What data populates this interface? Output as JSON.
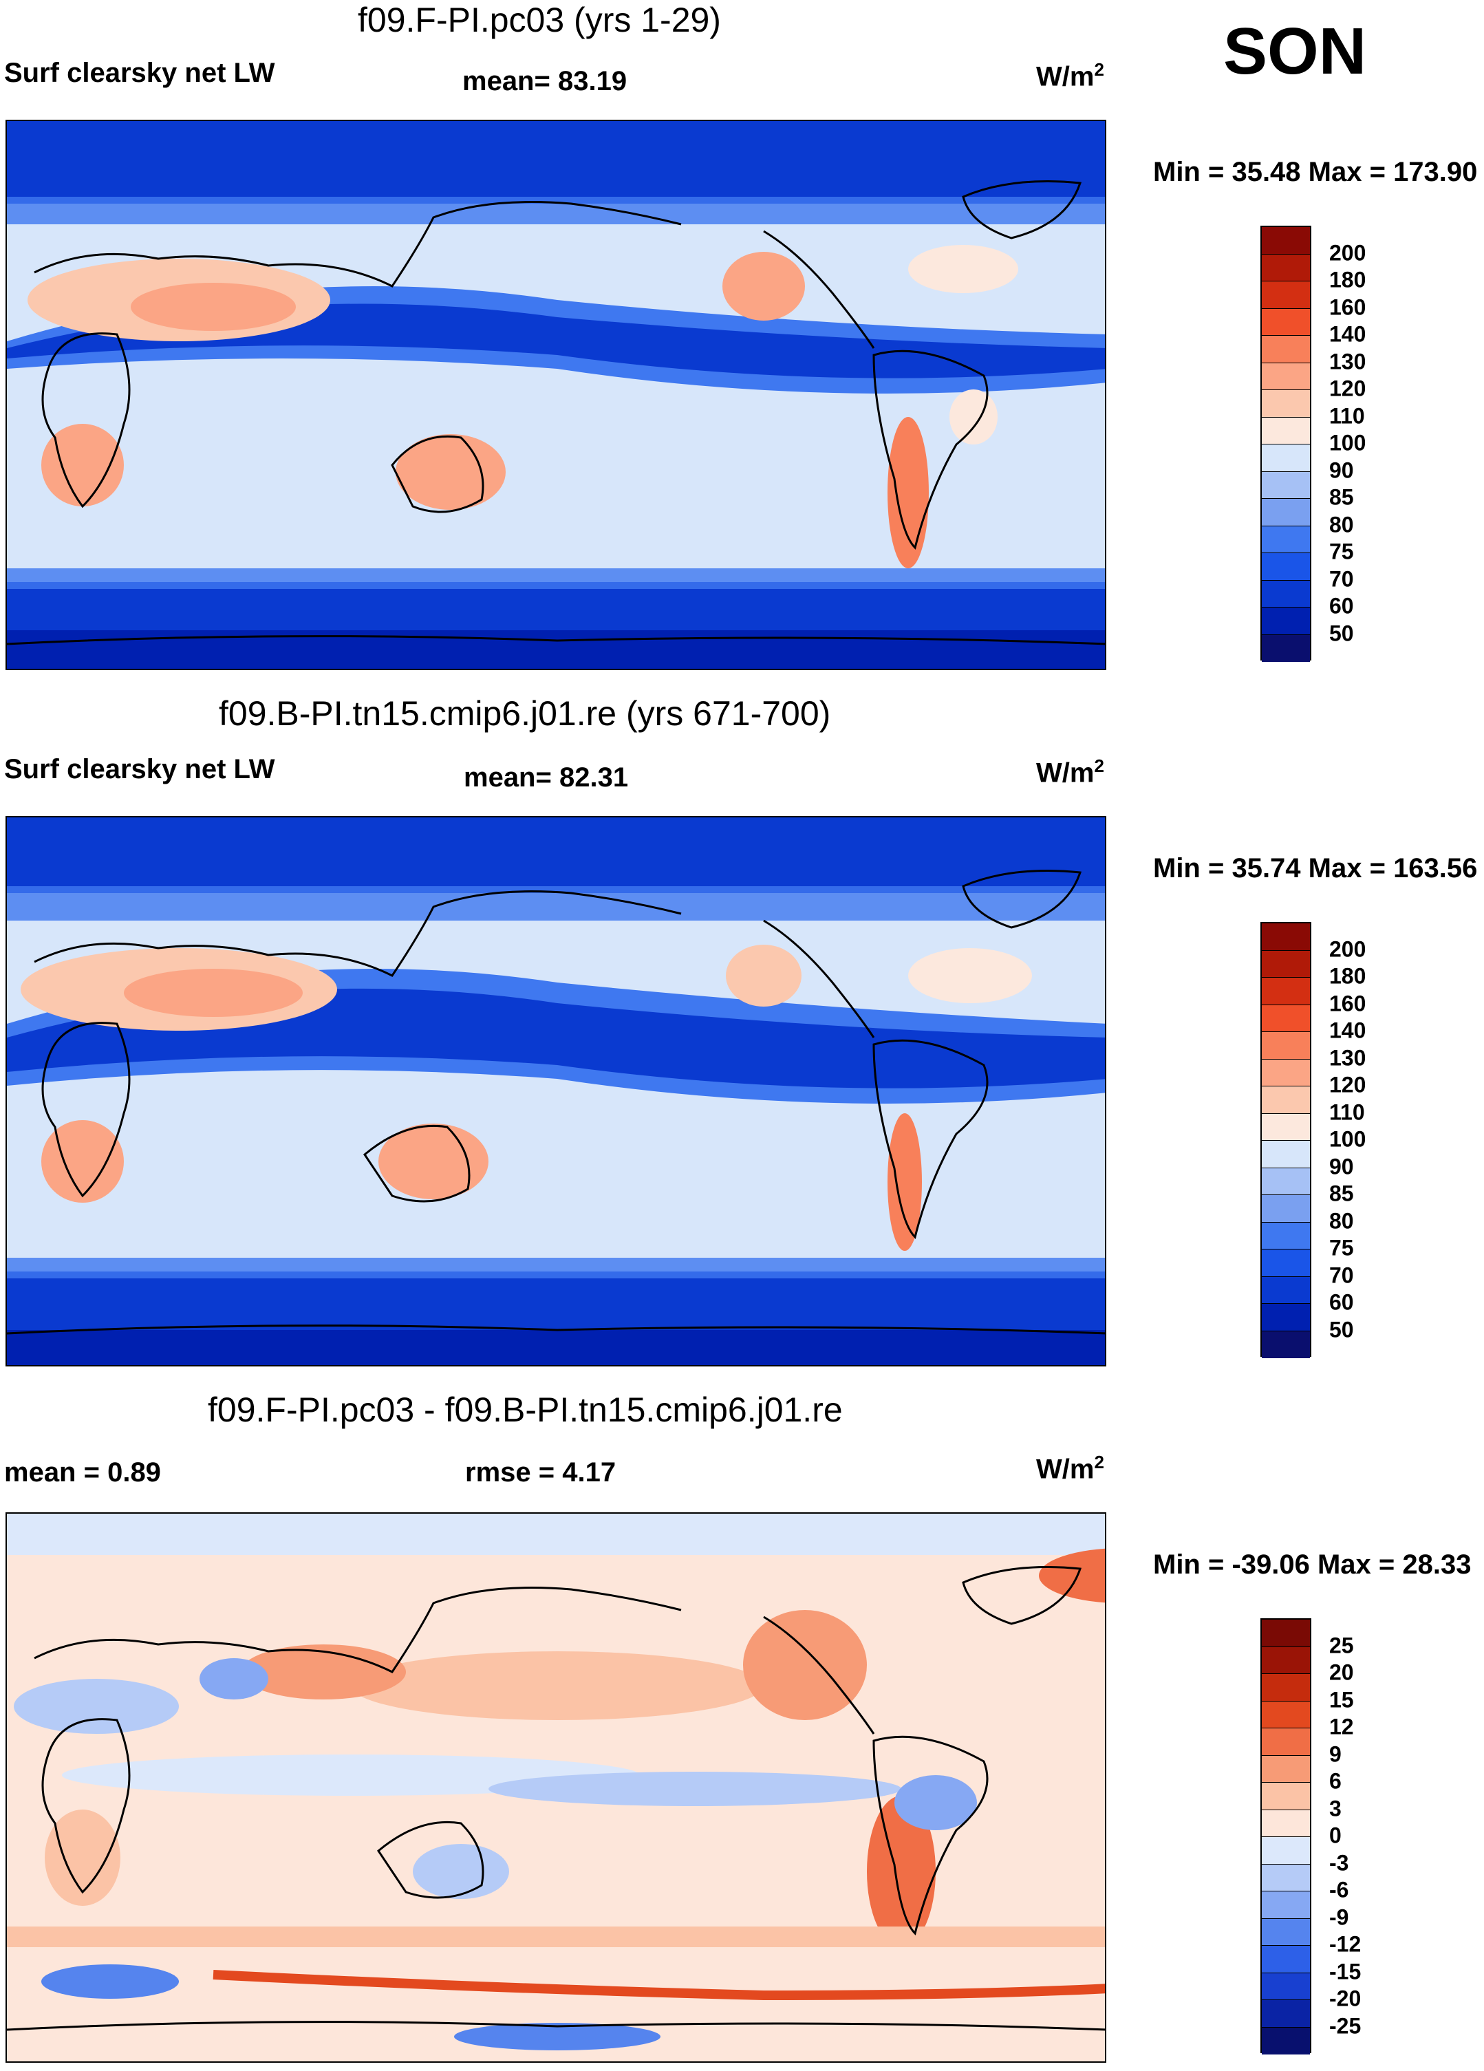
{
  "season": "SON",
  "units": "W/m",
  "units_sup": "2",
  "colors": {
    "abs_scale": [
      "#0a0f6e",
      "#0020b0",
      "#0a3ad0",
      "#1a55e8",
      "#3f78f0",
      "#7aa0f0",
      "#a6c1f5",
      "#d7e6fa",
      "#fce8dd",
      "#fbc8ae",
      "#fba585",
      "#f8805a",
      "#f0502a",
      "#d32f12",
      "#b01a08",
      "#8a0a05"
    ],
    "diff_scale": [
      "#08106e",
      "#0a23a5",
      "#1840d0",
      "#2d60e8",
      "#5584ee",
      "#86a8f3",
      "#b5cbf7",
      "#dce8fb",
      "#fde6da",
      "#fbc3a6",
      "#f79b76",
      "#f06e46",
      "#e3491f",
      "#c52c0d",
      "#9a1406",
      "#7a0a05"
    ],
    "land_outline": "#000000"
  },
  "panels": [
    {
      "title": "f09.F-PI.pc03 (yrs 1-29)",
      "left_label": "Surf clearsky net LW",
      "center_label": "mean=  83.19",
      "minmax": "Min =  35.48 Max = 173.90",
      "colorbar_ticks": [
        "50",
        "60",
        "70",
        "75",
        "80",
        "85",
        "90",
        "100",
        "110",
        "120",
        "130",
        "140",
        "160",
        "180",
        "200"
      ]
    },
    {
      "title": "f09.B-PI.tn15.cmip6.j01.re (yrs 671-700)",
      "left_label": "Surf clearsky net LW",
      "center_label": "mean=  82.31",
      "minmax": "Min =  35.74 Max = 163.56",
      "colorbar_ticks": [
        "50",
        "60",
        "70",
        "75",
        "80",
        "85",
        "90",
        "100",
        "110",
        "120",
        "130",
        "140",
        "160",
        "180",
        "200"
      ]
    },
    {
      "title": "f09.F-PI.pc03 - f09.B-PI.tn15.cmip6.j01.re",
      "left_label": "mean =   0.89",
      "center_label": "rmse =    4.17",
      "minmax": "Min = -39.06 Max =  28.33",
      "colorbar_ticks": [
        "-25",
        "-20",
        "-15",
        "-12",
        "-9",
        "-6",
        "-3",
        "0",
        "3",
        "6",
        "9",
        "12",
        "15",
        "20",
        "25"
      ]
    }
  ]
}
